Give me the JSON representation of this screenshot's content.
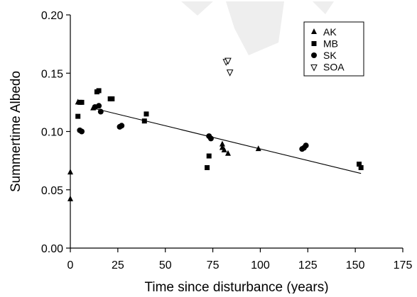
{
  "chart_data": {
    "type": "scatter",
    "xlabel": "Time since disturbance (years)",
    "ylabel": "Summertime Albedo",
    "xlim": [
      0,
      175
    ],
    "ylim": [
      0.0,
      0.2
    ],
    "xticks": [
      0,
      25,
      50,
      75,
      100,
      125,
      150,
      175
    ],
    "xtick_labels": [
      "0",
      "25",
      "50",
      "75",
      "100",
      "125",
      "150",
      "175"
    ],
    "yticks": [
      0.0,
      0.05,
      0.1,
      0.15,
      0.2
    ],
    "ytick_labels": [
      "0.00",
      "0.05",
      "0.10",
      "0.15",
      "0.20"
    ],
    "grid": false,
    "legend_position": "top-right",
    "series": [
      {
        "name": "AK",
        "marker": "triangle-filled",
        "points": [
          [
            0,
            0.065
          ],
          [
            0,
            0.042
          ],
          [
            4,
            0.125
          ],
          [
            12,
            0.12
          ],
          [
            80,
            0.086
          ],
          [
            80,
            0.089
          ],
          [
            81,
            0.084
          ],
          [
            83,
            0.081
          ],
          [
            99,
            0.085
          ]
        ]
      },
      {
        "name": "MB",
        "marker": "square-filled",
        "points": [
          [
            4,
            0.113
          ],
          [
            5,
            0.125
          ],
          [
            6,
            0.125
          ],
          [
            14,
            0.134
          ],
          [
            15,
            0.135
          ],
          [
            21,
            0.128
          ],
          [
            22,
            0.128
          ],
          [
            39,
            0.109
          ],
          [
            40,
            0.115
          ],
          [
            72,
            0.069
          ],
          [
            73,
            0.079
          ],
          [
            152,
            0.072
          ],
          [
            153,
            0.069
          ]
        ]
      },
      {
        "name": "SK",
        "marker": "circle-filled",
        "points": [
          [
            5,
            0.101
          ],
          [
            6,
            0.1
          ],
          [
            13,
            0.121
          ],
          [
            15,
            0.122
          ],
          [
            16,
            0.117
          ],
          [
            26,
            0.104
          ],
          [
            27,
            0.105
          ],
          [
            73,
            0.096
          ],
          [
            74,
            0.094
          ],
          [
            122,
            0.085
          ],
          [
            123,
            0.086
          ],
          [
            124,
            0.088
          ]
        ]
      },
      {
        "name": "SOA",
        "marker": "triangle-down-open",
        "points": [
          [
            82,
            0.16
          ],
          [
            83,
            0.161
          ],
          [
            84,
            0.151
          ]
        ]
      }
    ],
    "trendline": {
      "x": [
        12,
        153
      ],
      "y": [
        0.12,
        0.064
      ]
    }
  },
  "colors": {
    "marker": "#000000",
    "axis": "#000000",
    "background": "#ffffff"
  }
}
